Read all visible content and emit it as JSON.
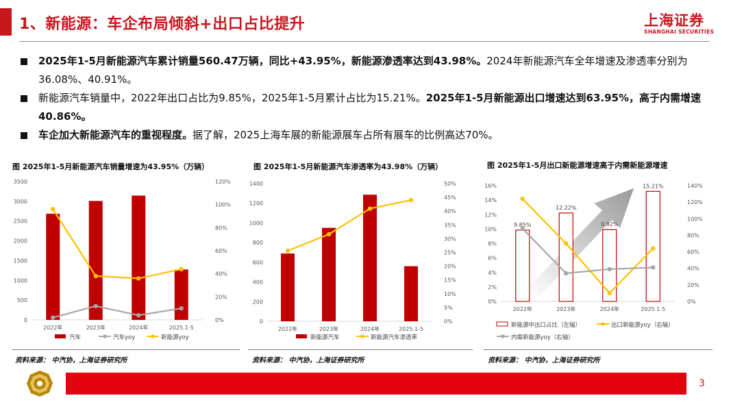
{
  "header": {
    "title": "1、新能源：车企布局倾斜+出口占比提升",
    "logo_cn": "上海证券",
    "logo_en": "SHANGHAI SECURITIES"
  },
  "bullets": [
    {
      "parts": [
        {
          "text": "2025年1-5月新能源汽车累计销量560.47万辆，同比+43.95%，新能源渗透率达到43.98%。",
          "bold": true
        },
        {
          "text": "2024年新能源汽车全年增速及渗透率分别为36.08%、40.91%。",
          "bold": false
        }
      ]
    },
    {
      "parts": [
        {
          "text": "新能源汽车销量中，2022年出口占比为9.85%，2025年1-5月累计占比为15.21%。",
          "bold": false
        },
        {
          "text": "2025年1-5月新能源出口增速达到63.95%，高于内需增速40.86%。",
          "bold": true
        }
      ]
    },
    {
      "parts": [
        {
          "text": "车企加大新能源汽车的重视程度。",
          "bold": true
        },
        {
          "text": "据了解，2025上海车展的新能源展车占所有展车的比例高达70%。",
          "bold": false
        }
      ]
    }
  ],
  "sources": [
    "资料来源：  中汽协，上海证券研究所",
    "资料来源：  中汽协，上海证券研究所",
    "资料来源：  中汽协，上海证券研究所"
  ],
  "page_number": "3",
  "colors": {
    "accent": "#c8161d",
    "bar": "#c00000",
    "line_yellow": "#ffc000",
    "line_gray": "#a6a6a6"
  },
  "chart_data": [
    {
      "type": "bar",
      "title": "图  2025年1-5月新能源汽车销量增速为43.95%（万辆）",
      "categories": [
        "2022年",
        "2023年",
        "2024年",
        "2025.1-5"
      ],
      "ylim": [
        0,
        3500
      ],
      "yticks": [
        "0",
        "500",
        "1000",
        "1500",
        "2000",
        "2500",
        "3000",
        "3500"
      ],
      "y2lim": [
        0,
        120
      ],
      "y2ticks": [
        "0%",
        "20%",
        "40%",
        "60%",
        "80%",
        "100%",
        "120%"
      ],
      "series": [
        {
          "name": "汽车",
          "type": "bar",
          "axis": "left",
          "values": [
            2686,
            3009,
            3144,
            1275
          ]
        },
        {
          "name": "汽车yoy",
          "type": "line",
          "axis": "right",
          "values": [
            2,
            12,
            4,
            10
          ]
        },
        {
          "name": "新能源yoy",
          "type": "line",
          "axis": "right",
          "values": [
            96,
            38,
            36,
            44
          ]
        }
      ]
    },
    {
      "type": "bar",
      "title": "图  2025年1-5月新能源汽车渗透率为43.98%（万辆）",
      "categories": [
        "2022年",
        "2023年",
        "2024年",
        "2025.1-5"
      ],
      "ylim": [
        0,
        1400
      ],
      "yticks": [
        "0",
        "200",
        "400",
        "600",
        "800",
        "1000",
        "1200",
        "1400"
      ],
      "y2lim": [
        0,
        50
      ],
      "y2ticks": [
        "0%",
        "5%",
        "10%",
        "15%",
        "20%",
        "25%",
        "30%",
        "35%",
        "40%",
        "45%",
        "50%"
      ],
      "series": [
        {
          "name": "新能源汽车",
          "type": "bar",
          "axis": "left",
          "values": [
            689,
            950,
            1287,
            560
          ]
        },
        {
          "name": "新能源汽车渗透率",
          "type": "line",
          "axis": "right",
          "values": [
            25.6,
            31.6,
            40.9,
            44.0
          ]
        }
      ]
    },
    {
      "type": "bar",
      "title": "图  2025年1-5月出口新能源增速高于内需新能源增速",
      "categories": [
        "2022年",
        "2023年",
        "2024年",
        "2025.1-5"
      ],
      "ylim": [
        0,
        16
      ],
      "yticks": [
        "0%",
        "2%",
        "4%",
        "6%",
        "8%",
        "10%",
        "12%",
        "14%",
        "16%"
      ],
      "y2lim": [
        0,
        140
      ],
      "y2ticks": [
        "0%",
        "20%",
        "40%",
        "60%",
        "80%",
        "100%",
        "120%",
        "140%"
      ],
      "bar_labels": [
        "9.85%",
        "12.22%",
        "9.92%",
        "15.21%"
      ],
      "series": [
        {
          "name": "新能源中出口占比（左轴）",
          "type": "bar",
          "axis": "left",
          "values": [
            9.85,
            12.22,
            9.92,
            15.21
          ]
        },
        {
          "name": "出口新能源yoy（右轴）",
          "type": "line",
          "axis": "right",
          "values": [
            124,
            70,
            10,
            64
          ]
        },
        {
          "name": "内需新能源yoy（右轴）",
          "type": "line",
          "axis": "right",
          "values": [
            88,
            34,
            39,
            41
          ]
        }
      ]
    }
  ]
}
